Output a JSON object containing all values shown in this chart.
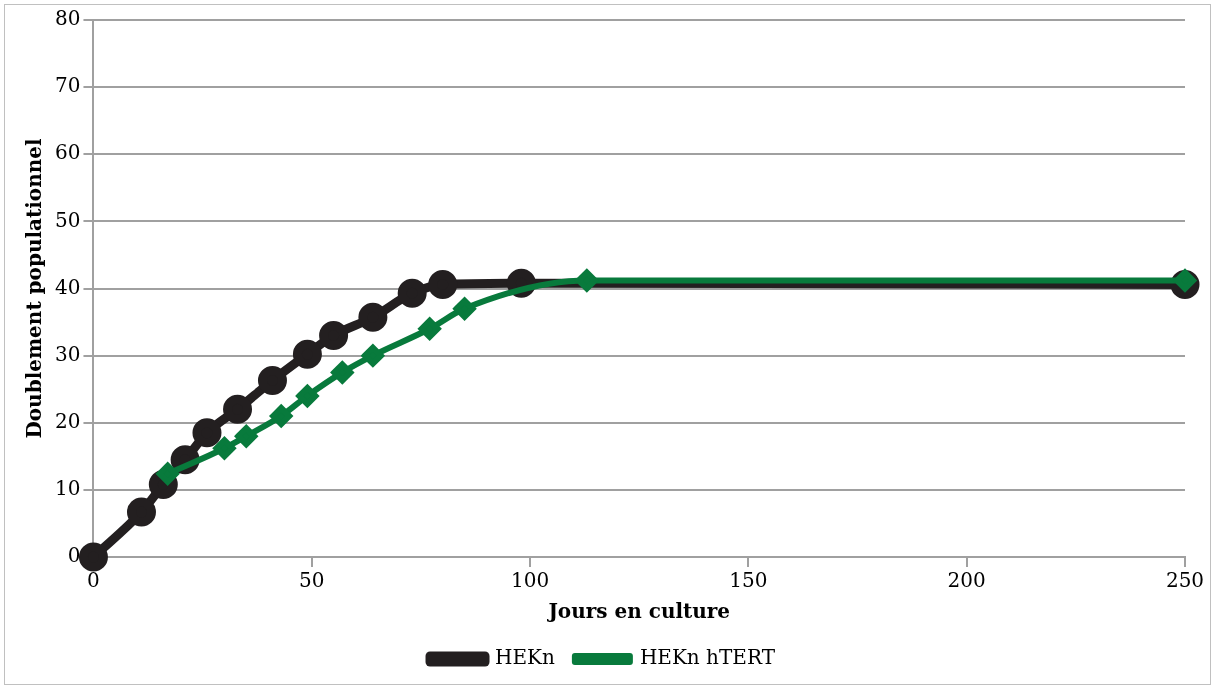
{
  "chart_data": {
    "type": "line",
    "xlabel": "Jours en culture",
    "ylabel": "Doublement populationnel",
    "xlim": [
      0,
      250
    ],
    "xticks": [
      0,
      50,
      100,
      150,
      200,
      250
    ],
    "ylim": [
      0,
      80
    ],
    "yticks": [
      0,
      10,
      20,
      30,
      40,
      50,
      60,
      70,
      80
    ],
    "grid": "y",
    "legend": "bottom",
    "series": [
      {
        "name": "HEKn",
        "color": "#231f20",
        "marker": "circle",
        "x": [
          0,
          11,
          16,
          21,
          26,
          33,
          41,
          49,
          55,
          64,
          73,
          80,
          98,
          250
        ],
        "values": [
          0,
          6.7,
          10.8,
          14.5,
          18.5,
          22,
          26.3,
          30.2,
          33,
          35.7,
          39.3,
          40.6,
          40.8,
          40.6
        ]
      },
      {
        "name": "HEKn hTERT",
        "color": "#087a3c",
        "marker": "diamond",
        "x": [
          17,
          30,
          35,
          43,
          49,
          57,
          64,
          77,
          85,
          113,
          250
        ],
        "values": [
          12.4,
          16.2,
          18,
          21,
          24,
          27.5,
          30,
          34,
          37,
          41.2,
          41.2
        ]
      }
    ]
  }
}
